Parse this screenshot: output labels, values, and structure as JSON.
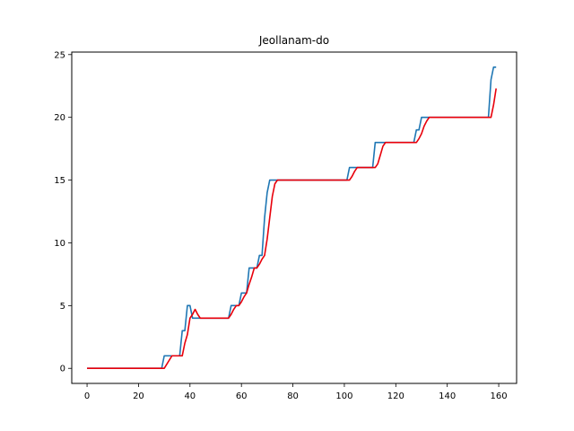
{
  "chart_data": {
    "type": "line",
    "title": "Jeollanam-do",
    "xlabel": "",
    "ylabel": "",
    "xlim": [
      -5.95,
      166.95
    ],
    "ylim": [
      -1.2,
      25.2
    ],
    "xticks": [
      0,
      20,
      40,
      60,
      80,
      100,
      120,
      140,
      160
    ],
    "yticks": [
      0,
      5,
      10,
      15,
      20,
      25
    ],
    "grid": false,
    "legend": "none",
    "series": [
      {
        "color": "#1f77b4",
        "points": [
          [
            0,
            0
          ],
          [
            29,
            0
          ],
          [
            30,
            1
          ],
          [
            36,
            1
          ],
          [
            37,
            3
          ],
          [
            38,
            3
          ],
          [
            39,
            5
          ],
          [
            40,
            5
          ],
          [
            41,
            4
          ],
          [
            55,
            4
          ],
          [
            56,
            5
          ],
          [
            59,
            5
          ],
          [
            60,
            6
          ],
          [
            62,
            6
          ],
          [
            63,
            8
          ],
          [
            66,
            8
          ],
          [
            67,
            9
          ],
          [
            68,
            9
          ],
          [
            69,
            12
          ],
          [
            70,
            14
          ],
          [
            71,
            15
          ],
          [
            101,
            15
          ],
          [
            102,
            16
          ],
          [
            111,
            16
          ],
          [
            112,
            18
          ],
          [
            127,
            18
          ],
          [
            128,
            19
          ],
          [
            129,
            19
          ],
          [
            130,
            20
          ],
          [
            155,
            20
          ],
          [
            156,
            20
          ],
          [
            157,
            23
          ],
          [
            158,
            24
          ],
          [
            159,
            24
          ]
        ]
      },
      {
        "color": "#e8000b",
        "points": [
          [
            0,
            0
          ],
          [
            29,
            0
          ],
          [
            30,
            0
          ],
          [
            33,
            1
          ],
          [
            37,
            1
          ],
          [
            38,
            2
          ],
          [
            39,
            2.7
          ],
          [
            40,
            4
          ],
          [
            41,
            4.3
          ],
          [
            42,
            4.7
          ],
          [
            43,
            4.3
          ],
          [
            44,
            4
          ],
          [
            55,
            4
          ],
          [
            56,
            4.3
          ],
          [
            57,
            4.7
          ],
          [
            58,
            5
          ],
          [
            59,
            5
          ],
          [
            60,
            5.3
          ],
          [
            61,
            5.7
          ],
          [
            62,
            6
          ],
          [
            63,
            6.7
          ],
          [
            64,
            7.3
          ],
          [
            65,
            8
          ],
          [
            66,
            8
          ],
          [
            67,
            8.3
          ],
          [
            68,
            8.7
          ],
          [
            69,
            9
          ],
          [
            70,
            10.3
          ],
          [
            71,
            12
          ],
          [
            72,
            13.7
          ],
          [
            73,
            14.7
          ],
          [
            74,
            15
          ],
          [
            102,
            15
          ],
          [
            103,
            15.3
          ],
          [
            104,
            15.7
          ],
          [
            105,
            16
          ],
          [
            112,
            16
          ],
          [
            113,
            16.3
          ],
          [
            114,
            17
          ],
          [
            115,
            17.7
          ],
          [
            116,
            18
          ],
          [
            128,
            18
          ],
          [
            129,
            18.3
          ],
          [
            130,
            18.7
          ],
          [
            131,
            19.3
          ],
          [
            132,
            19.7
          ],
          [
            133,
            20
          ],
          [
            157,
            20
          ],
          [
            158,
            21
          ],
          [
            159,
            22.3
          ]
        ]
      }
    ]
  }
}
